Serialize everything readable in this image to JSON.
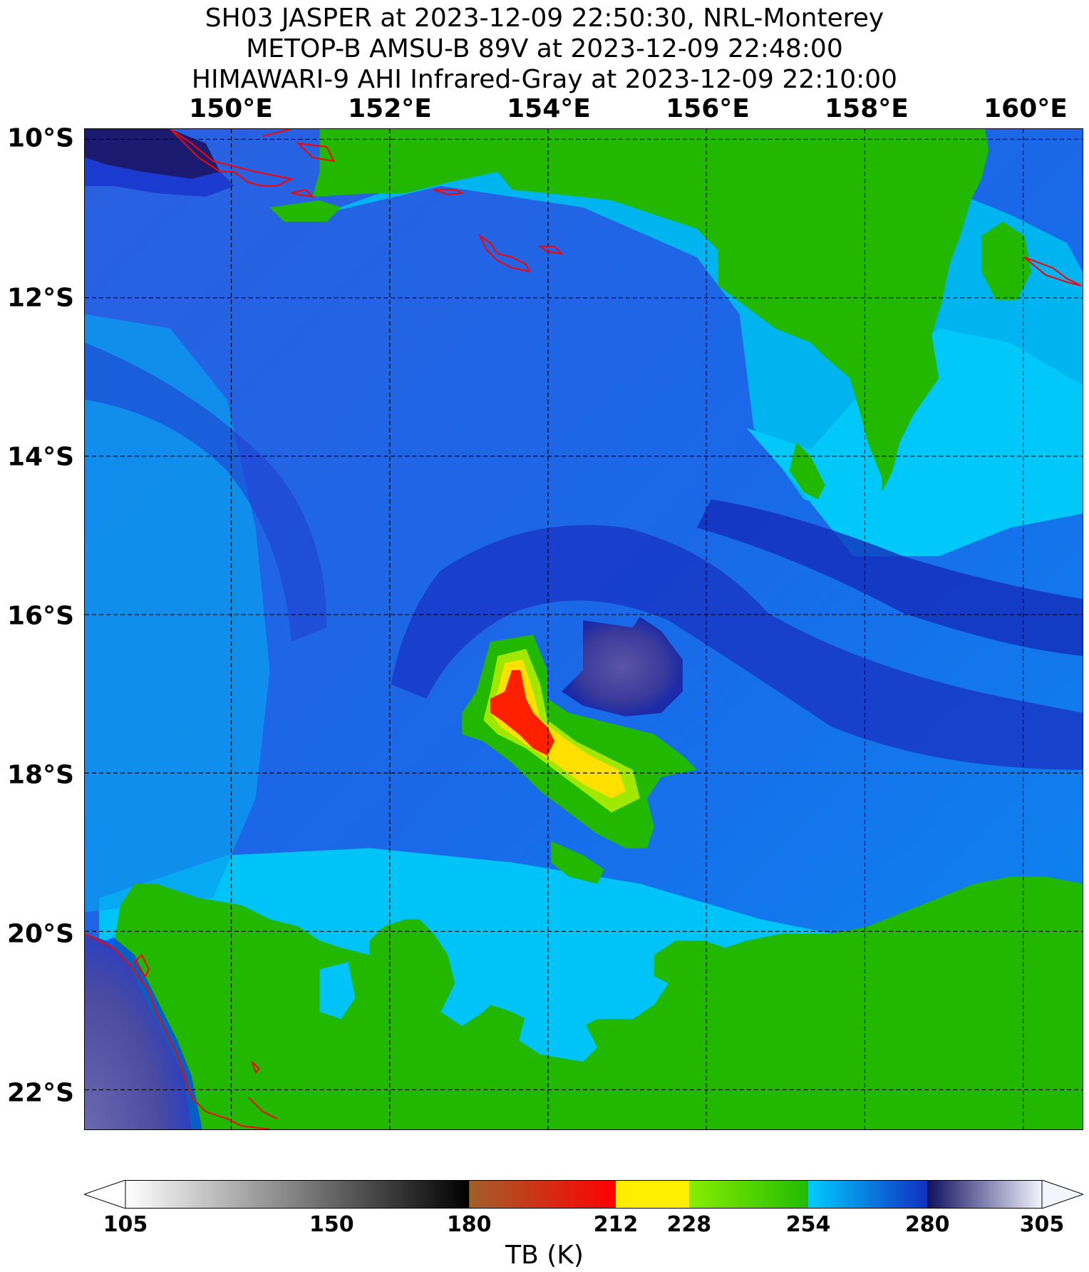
{
  "titles": {
    "line1": "SH03 JASPER at 2023-12-09 22:50:30, NRL-Monterey",
    "line2": "METOP-B AMSU-B 89V at 2023-12-09 22:48:00",
    "line3": "HIMAWARI-9 AHI Infrared-Gray at 2023-12-09 22:10:00"
  },
  "map": {
    "lon_labels": [
      "150°E",
      "152°E",
      "154°E",
      "156°E",
      "158°E",
      "160°E"
    ],
    "lat_labels": [
      "10°S",
      "12°S",
      "14°S",
      "16°S",
      "18°S",
      "20°S",
      "22°S"
    ],
    "lon_values": [
      150,
      152,
      154,
      156,
      158,
      160
    ],
    "lat_values": [
      -10,
      -12,
      -14,
      -16,
      -18,
      -20,
      -22
    ],
    "lon_range": [
      148.15,
      160.75
    ],
    "lat_range": [
      -9.87,
      -22.5
    ],
    "gridlines": "dashed",
    "coastline_color": "#ff0000"
  },
  "colorbar": {
    "ticks": [
      "105",
      "150",
      "180",
      "212",
      "228",
      "254",
      "280",
      "305"
    ],
    "tick_values": [
      105,
      150,
      180,
      212,
      228,
      254,
      280,
      305
    ],
    "label": "TB (K)",
    "colors": {
      "gray_start": "#ffffff",
      "gray_end": "#000000",
      "brown": "#a0602a",
      "red": "#ff0000",
      "yellow": "#ffee00",
      "lightgreen": "#88ee00",
      "green": "#22bb00",
      "cyan": "#00ccff",
      "blue": "#1030c0",
      "navy": "#101060",
      "lavender": "#f4f4ff"
    }
  }
}
